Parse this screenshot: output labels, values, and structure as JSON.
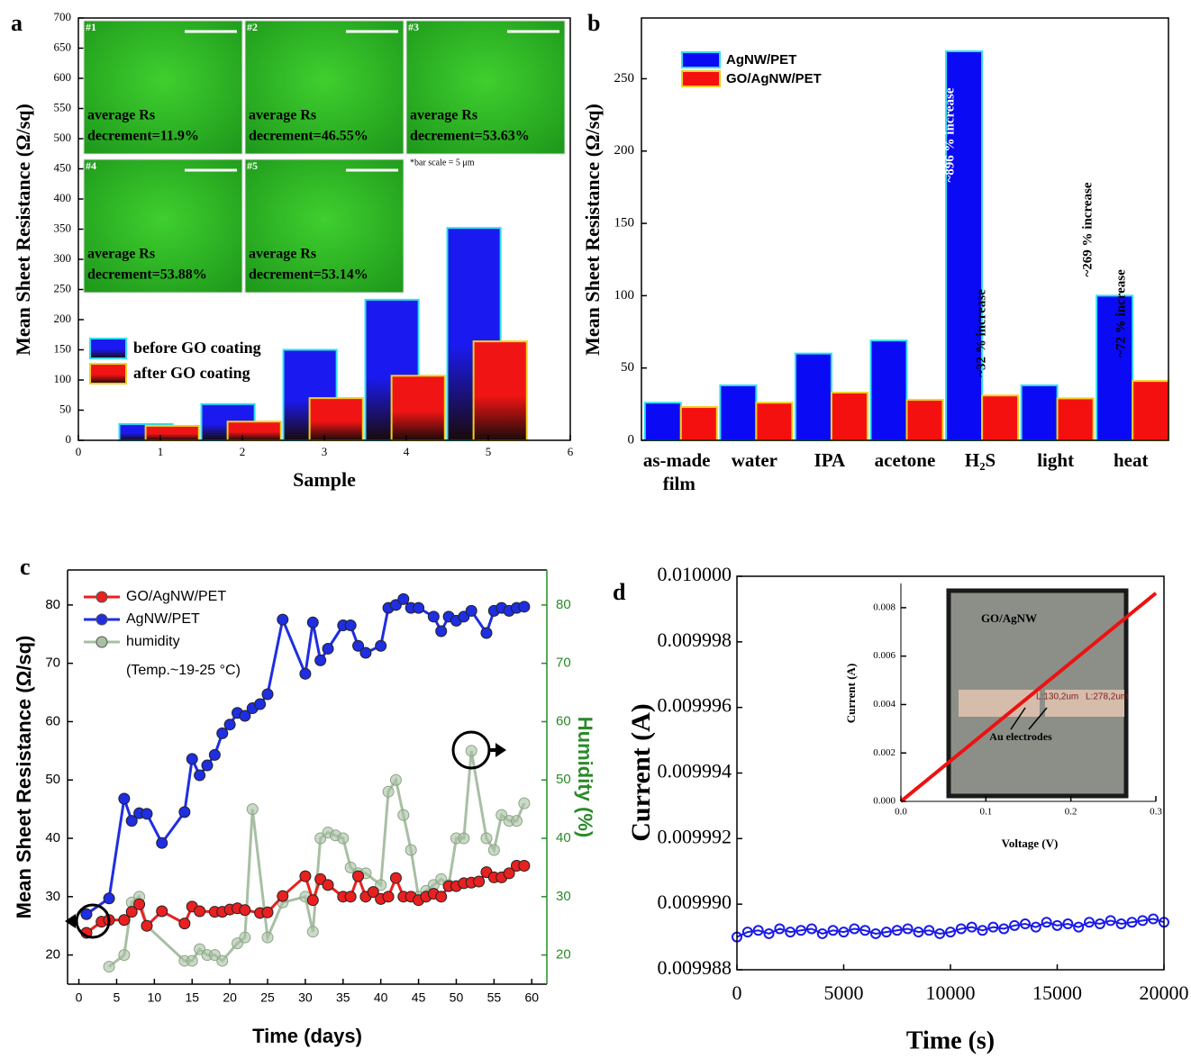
{
  "chart_data": [
    {
      "panel_label": "a",
      "type": "bar",
      "xlabel": "Sample",
      "ylabel": "Mean Sheet Resistance (Ω/sq)",
      "x": [
        1,
        2,
        3,
        4,
        5
      ],
      "series": [
        {
          "name": "before GO coating",
          "color": "#1a1af0",
          "values": [
            27,
            60,
            150,
            233,
            352
          ]
        },
        {
          "name": "after GO coating",
          "color": "#f01414",
          "values": [
            24,
            31,
            70,
            107,
            164
          ]
        }
      ],
      "xlim": [
        0,
        6
      ],
      "xticks": [
        0,
        1,
        2,
        3,
        4,
        5,
        6
      ],
      "ylim": [
        0,
        700
      ],
      "yticks": [
        0,
        50,
        100,
        150,
        200,
        250,
        300,
        350,
        400,
        450,
        500,
        550,
        600,
        650,
        700
      ],
      "insets": [
        {
          "label": "#1",
          "caption": "average Rs",
          "text": "decrement=11.9%"
        },
        {
          "label": "#2",
          "caption": "average Rs",
          "text": "decrement=46.55%"
        },
        {
          "label": "#3",
          "caption": "average Rs",
          "text": "decrement=53.63%"
        },
        {
          "label": "#4",
          "caption": "average Rs",
          "text": "decrement=53.88%"
        },
        {
          "label": "#5",
          "caption": "average Rs",
          "text": "decrement=53.14%"
        }
      ],
      "note": "*bar scale = 5 μm"
    },
    {
      "panel_label": "b",
      "type": "bar",
      "ylabel": "Mean Sheet Resistance (Ω/sq)",
      "categories": [
        "as-made film",
        "water",
        "IPA",
        "acetone",
        "H₂S",
        "light",
        "heat"
      ],
      "series": [
        {
          "name": "AgNW/PET",
          "color": "#0a0af5",
          "values": [
            26,
            38,
            60,
            69,
            269,
            38,
            100
          ]
        },
        {
          "name": "GO/AgNW/PET",
          "color": "#f51010",
          "values": [
            23,
            26,
            33,
            28,
            31,
            29,
            41
          ]
        }
      ],
      "ylim": [
        0,
        292
      ],
      "yticks": [
        0,
        50,
        100,
        150,
        200,
        250
      ],
      "annotations": [
        "~896 % increase",
        "~32 % increase",
        "~269 % increase",
        "~72 % increase"
      ]
    },
    {
      "panel_label": "c",
      "type": "line",
      "xlabel": "Time (days)",
      "ylabel": "Mean Sheet Resistance (Ω/sq)",
      "y2label": "Humidity (%)",
      "series": [
        {
          "name": "GO/AgNW/PET",
          "color": "#e82020",
          "x": [
            1,
            3,
            4,
            6,
            7,
            8,
            9,
            11,
            14,
            15,
            16,
            18,
            19,
            20,
            21,
            22,
            24,
            25,
            27,
            30,
            31,
            32,
            33,
            35,
            36,
            37,
            38,
            39,
            40,
            41,
            42,
            43,
            44,
            45,
            46,
            47,
            48,
            49,
            50,
            51,
            52,
            53,
            54,
            55,
            56,
            57,
            58,
            59
          ],
          "values": [
            23.8,
            25.7,
            26,
            26,
            27.4,
            28.7,
            25,
            27.5,
            25.4,
            28.3,
            27.5,
            27.4,
            27.4,
            27.8,
            28,
            27.7,
            27.2,
            27.3,
            30.1,
            33.5,
            29.4,
            33,
            32,
            30,
            30,
            33.5,
            30,
            30.8,
            29.6,
            30,
            33.2,
            30,
            30,
            29.4,
            30,
            30.5,
            30,
            31.8,
            31.8,
            32.3,
            32.4,
            32.6,
            34.2,
            33.3,
            33.3,
            34,
            35.3,
            35.3
          ]
        },
        {
          "name": "AgNW/PET",
          "color": "#1e2ee0",
          "x": [
            1,
            4,
            6,
            7,
            8,
            9,
            11,
            14,
            15,
            16,
            17,
            18,
            19,
            20,
            21,
            22,
            23,
            24,
            25,
            27,
            30,
            31,
            32,
            33,
            35,
            36,
            37,
            38,
            40,
            41,
            42,
            43,
            44,
            45,
            47,
            48,
            49,
            50,
            51,
            52,
            54,
            55,
            56,
            57,
            58,
            59
          ],
          "values": [
            27,
            29.7,
            46.8,
            43,
            44.3,
            44.2,
            39.2,
            44.5,
            53.6,
            50.8,
            52.5,
            54.3,
            58,
            59.5,
            61.5,
            61,
            62.3,
            63,
            64.7,
            77.5,
            68.2,
            77,
            70.5,
            72.5,
            76.5,
            76.5,
            73,
            71.8,
            73,
            79.5,
            80,
            81,
            79.5,
            79.5,
            78,
            75.5,
            78,
            77.3,
            78,
            79,
            75.2,
            79,
            79.5,
            79,
            79.5,
            79.7
          ]
        },
        {
          "name": "humidity",
          "color": "#a8bfa3",
          "axis": "y2",
          "x": [
            4,
            6,
            7,
            8,
            9,
            14,
            15,
            16,
            17,
            18,
            19,
            21,
            22,
            23,
            25,
            27,
            30,
            31,
            32,
            33,
            34,
            35,
            36,
            37,
            38,
            40,
            41,
            42,
            43,
            44,
            45,
            46,
            47,
            48,
            49,
            50,
            51,
            52,
            54,
            55,
            56,
            57,
            58,
            59
          ],
          "values": [
            18,
            20,
            29,
            30,
            25,
            19,
            19,
            21,
            20,
            20,
            19,
            22,
            23,
            45,
            23,
            29,
            30,
            24,
            40,
            41,
            40.5,
            40,
            35,
            34,
            34,
            32,
            48,
            50,
            44,
            38,
            30,
            31,
            32,
            33,
            32,
            40,
            40,
            55,
            40,
            38,
            44,
            43,
            43,
            46
          ]
        }
      ],
      "note": "(Temp.~19-25 °C)",
      "xlim": [
        -1.5,
        62
      ],
      "xticks": [
        0,
        5,
        10,
        15,
        20,
        25,
        30,
        35,
        40,
        45,
        50,
        55,
        60
      ],
      "ylim": [
        15,
        86
      ],
      "yticks": [
        20,
        30,
        40,
        50,
        60,
        70,
        80
      ],
      "y2lim": [
        15,
        86
      ],
      "y2ticks": [
        20,
        30,
        40,
        50,
        60,
        70,
        80
      ]
    },
    {
      "panel_label": "d",
      "type": "line",
      "xlabel": "Time (s)",
      "ylabel": "Current (A)",
      "color": "#1a1ae6",
      "x": [
        0,
        500,
        1000,
        1500,
        2000,
        2500,
        3000,
        3500,
        4000,
        4500,
        5000,
        5500,
        6000,
        6500,
        7000,
        7500,
        8000,
        8500,
        9000,
        9500,
        10000,
        10500,
        11000,
        11500,
        12000,
        12500,
        13000,
        13500,
        14000,
        14500,
        15000,
        15500,
        16000,
        16500,
        17000,
        17500,
        18000,
        18500,
        19000,
        19500,
        20000
      ],
      "values": [
        0.009989,
        0.00998915,
        0.0099892,
        0.0099891,
        0.00998925,
        0.00998915,
        0.0099892,
        0.00998925,
        0.0099891,
        0.0099892,
        0.00998915,
        0.00998925,
        0.0099892,
        0.0099891,
        0.00998915,
        0.0099892,
        0.00998925,
        0.00998915,
        0.0099892,
        0.0099891,
        0.00998915,
        0.00998925,
        0.0099893,
        0.0099892,
        0.0099893,
        0.00998925,
        0.00998935,
        0.0099894,
        0.0099893,
        0.00998945,
        0.00998935,
        0.0099894,
        0.0099893,
        0.00998945,
        0.0099894,
        0.0099895,
        0.0099894,
        0.00998945,
        0.0099895,
        0.00998955,
        0.00998945
      ],
      "xlim": [
        0,
        20000
      ],
      "xticks": [
        0,
        5000,
        10000,
        15000,
        20000
      ],
      "ylim": [
        0.009988,
        0.01
      ],
      "yticks": [
        0.009988,
        {
          "value": 0.00999,
          "label": "0.009990"
        },
        0.009992,
        0.009994,
        0.009996,
        0.009998,
        {
          "value": 0.01,
          "label": "0.010000"
        }
      ]
    },
    {
      "type": "line",
      "xlabel": "Voltage (V)",
      "ylabel": "Current (A)",
      "color": "#ee1111",
      "x": [
        0,
        0.3
      ],
      "values": [
        0,
        0.0086
      ],
      "xlim": [
        0,
        0.3
      ],
      "xticks": [
        {
          "value": 0,
          "label": "0.0"
        },
        0.1,
        0.2,
        0.3
      ],
      "ylim": [
        0,
        0.009
      ],
      "yticks": [
        {
          "value": 0,
          "label": "0.000"
        },
        0.002,
        0.004,
        0.006,
        0.008
      ],
      "photo_title": "GO/AgNW",
      "electrode_label": "Au electrodes",
      "lengths": [
        "L:130,2um",
        "L:278,2um"
      ]
    }
  ]
}
